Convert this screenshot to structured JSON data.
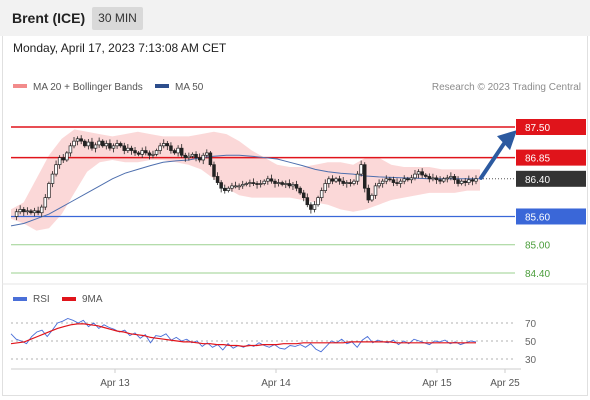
{
  "header": {
    "title": "Brent (ICE)",
    "timeframe": "30 MIN"
  },
  "datetime": "Monday, April 17, 2023 7:13:08 AM CET",
  "legend": {
    "ma_bb": "MA 20 + Bollinger Bands",
    "ma50": "MA 50",
    "research": "Research © 2023 Trading Central"
  },
  "rsi_legend": {
    "rsi": "RSI",
    "ma9": "9MA"
  },
  "colors": {
    "resistance": "#e0141b",
    "support": "#3a67d8",
    "target": "#4a9d3a",
    "bollinger": "#f7b8b8",
    "ma50": "#4e6fae",
    "candle": "#222222",
    "rsi": "#4a6fd8",
    "rsi_ma": "#e0141b",
    "arrow": "#2c5aa0",
    "current": "#333333"
  },
  "chart_data": [
    {
      "type": "candlestick",
      "title": "Brent (ICE) 30 MIN",
      "x_tick_labels": [
        "Apr 13",
        "Apr 14",
        "Apr 15",
        "Apr 25"
      ],
      "price_levels": [
        {
          "value": 87.5,
          "label": "87.50",
          "kind": "resistance"
        },
        {
          "value": 86.85,
          "label": "86.85",
          "kind": "resistance"
        },
        {
          "value": 86.4,
          "label": "86.40",
          "kind": "current"
        },
        {
          "value": 85.6,
          "label": "85.60",
          "kind": "support"
        },
        {
          "value": 85.0,
          "label": "85.00",
          "kind": "target"
        },
        {
          "value": 84.4,
          "label": "84.40",
          "kind": "target"
        }
      ],
      "ylim": [
        84.2,
        87.75
      ],
      "close_series": [
        85.6,
        85.7,
        85.75,
        85.7,
        85.72,
        85.68,
        85.72,
        85.68,
        85.8,
        86.0,
        86.3,
        86.5,
        86.7,
        86.85,
        86.8,
        86.95,
        87.1,
        87.2,
        87.25,
        87.2,
        87.1,
        87.18,
        87.05,
        87.12,
        87.2,
        87.1,
        87.15,
        87.05,
        87.1,
        87.15,
        87.1,
        87.0,
        87.05,
        87.0,
        86.95,
        86.92,
        87.0,
        86.95,
        86.9,
        86.92,
        87.0,
        87.1,
        87.15,
        87.1,
        87.0,
        86.95,
        87.05,
        86.9,
        86.85,
        86.88,
        86.92,
        86.85,
        86.8,
        86.9,
        86.95,
        86.7,
        86.45,
        86.32,
        86.2,
        86.15,
        86.2,
        86.25,
        86.25,
        86.25,
        86.28,
        86.3,
        86.32,
        86.3,
        86.28,
        86.3,
        86.35,
        86.4,
        86.35,
        86.3,
        86.32,
        86.28,
        86.3,
        86.25,
        86.28,
        86.2,
        86.1,
        86.0,
        85.85,
        85.75,
        85.85,
        86.0,
        86.15,
        86.3,
        86.4,
        86.35,
        86.4,
        86.35,
        86.3,
        86.32,
        86.3,
        86.35,
        86.5,
        86.7,
        86.2,
        85.95,
        86.05,
        86.25,
        86.3,
        86.35,
        86.4,
        86.38,
        86.32,
        86.3,
        86.35,
        86.4,
        86.38,
        86.42,
        86.5,
        86.55,
        86.48,
        86.45,
        86.4,
        86.42,
        86.38,
        86.35,
        86.4,
        86.42,
        86.45,
        86.38,
        86.3,
        86.35,
        86.32,
        86.38,
        86.35,
        86.4
      ],
      "ma50": [
        85.4,
        85.45,
        85.55,
        85.65,
        85.8,
        85.95,
        86.1,
        86.25,
        86.4,
        86.52,
        86.6,
        86.68,
        86.75,
        86.78,
        86.8,
        86.85,
        86.88,
        86.9,
        86.9,
        86.88,
        86.85,
        86.82,
        86.75,
        86.68,
        86.6,
        86.55,
        86.52,
        86.5,
        86.46,
        86.44,
        86.43,
        86.42,
        86.41,
        86.4,
        86.4,
        86.4,
        86.4,
        86.4
      ],
      "bollinger_upper": [
        85.75,
        85.9,
        86.4,
        86.9,
        87.25,
        87.45,
        87.4,
        87.35,
        87.3,
        87.35,
        87.4,
        87.35,
        87.3,
        87.3,
        87.3,
        87.35,
        87.4,
        87.35,
        87.2,
        87.0,
        86.85,
        86.7,
        86.65,
        86.65,
        86.7,
        86.75,
        86.75,
        86.7,
        86.85,
        86.85,
        86.7,
        86.65,
        86.65,
        86.65,
        86.6,
        86.6,
        86.6,
        86.6
      ],
      "bollinger_lower": [
        85.55,
        85.45,
        85.3,
        85.35,
        85.65,
        86.1,
        86.55,
        86.75,
        86.8,
        86.75,
        86.75,
        86.8,
        86.8,
        86.75,
        86.7,
        86.6,
        86.4,
        86.2,
        86.05,
        86.0,
        86.0,
        86.0,
        86.0,
        85.95,
        85.9,
        85.85,
        85.75,
        85.7,
        85.75,
        85.85,
        85.95,
        86.0,
        86.05,
        86.1,
        86.1,
        86.1,
        86.15,
        86.15
      ]
    },
    {
      "type": "line",
      "title": "RSI",
      "ylim": [
        20,
        80
      ],
      "y_ticks": [
        70,
        50,
        30
      ],
      "series": [
        {
          "name": "RSI",
          "values": [
            58,
            52,
            50,
            47,
            55,
            60,
            62,
            55,
            62,
            70,
            72,
            75,
            73,
            70,
            73,
            66,
            70,
            64,
            68,
            65,
            63,
            60,
            62,
            56,
            59,
            53,
            57,
            48,
            56,
            55,
            58,
            51,
            54,
            50,
            52,
            48,
            50,
            44,
            48,
            43,
            46,
            40,
            47,
            42,
            45,
            43,
            46,
            44,
            48,
            45,
            43,
            46,
            42,
            41,
            45,
            44,
            46,
            43,
            47,
            41,
            38,
            44,
            50,
            48,
            52,
            47,
            49,
            43,
            51,
            55,
            48,
            51,
            49,
            48,
            51,
            46,
            50,
            47,
            52,
            50,
            48,
            46,
            50,
            49,
            51,
            47,
            49,
            46,
            48,
            50,
            49
          ]
        },
        {
          "name": "9MA",
          "values": [
            47,
            48,
            49,
            52,
            55,
            58,
            61,
            64,
            66,
            68,
            69,
            69,
            68,
            67,
            65,
            63,
            61,
            60,
            58,
            57,
            56,
            54,
            53,
            52,
            51,
            50,
            49,
            49,
            48,
            47,
            47,
            46,
            46,
            45,
            45,
            44,
            45,
            45,
            46,
            46,
            46,
            47,
            47,
            47,
            48,
            48,
            48,
            48,
            48,
            48,
            48,
            49,
            49,
            49,
            49,
            49,
            49,
            49,
            48,
            48,
            48,
            48,
            48,
            48,
            48,
            48,
            48,
            48,
            48,
            48,
            48
          ]
        }
      ]
    }
  ]
}
